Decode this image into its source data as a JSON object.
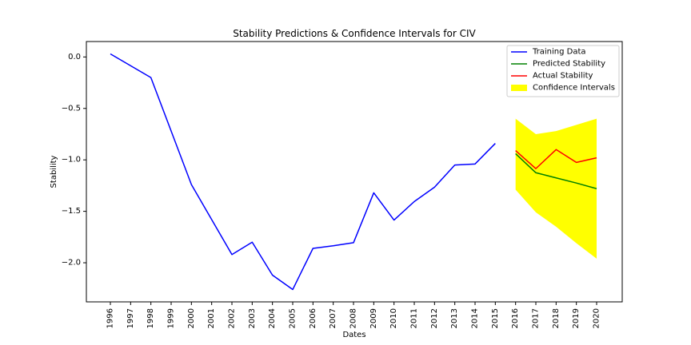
{
  "chart_data": {
    "type": "line",
    "title": "Stability Predictions & Confidence Intervals for CIV",
    "xlabel": "Dates",
    "ylabel": "Stability",
    "x_categories": [
      "1996",
      "1997",
      "1998",
      "1999",
      "2000",
      "2001",
      "2002",
      "2003",
      "2004",
      "2005",
      "2006",
      "2007",
      "2008",
      "2009",
      "2010",
      "2011",
      "2012",
      "2013",
      "2014",
      "2015",
      "2016",
      "2017",
      "2018",
      "2019",
      "2020"
    ],
    "ylim": [
      -2.38,
      0.15
    ],
    "yticks": [
      0.0,
      -0.5,
      -1.0,
      -1.5,
      -2.0
    ],
    "ytick_labels": [
      "0.0",
      "−0.5",
      "−1.0",
      "−1.5",
      "−2.0"
    ],
    "grid": false,
    "legend_position": "top-right",
    "series": [
      {
        "name": "Training Data",
        "color": "#0000ff",
        "x": [
          "1996",
          "1998",
          "2000",
          "2002",
          "2003",
          "2004",
          "2005",
          "2006",
          "2007",
          "2008",
          "2009",
          "2010",
          "2011",
          "2012",
          "2013",
          "2014",
          "2015"
        ],
        "y": [
          0.03,
          -0.2,
          -1.24,
          -1.92,
          -1.8,
          -2.12,
          -2.26,
          -1.86,
          -1.835,
          -1.805,
          -1.32,
          -1.585,
          -1.405,
          -1.265,
          -1.05,
          -1.04,
          -0.84
        ]
      },
      {
        "name": "Predicted Stability",
        "color": "#008000",
        "x": [
          "2016",
          "2017",
          "2018",
          "2019",
          "2020"
        ],
        "y": [
          -0.94,
          -1.125,
          -1.175,
          -1.225,
          -1.28
        ]
      },
      {
        "name": "Actual Stability",
        "color": "#ff0000",
        "x": [
          "2016",
          "2017",
          "2018",
          "2019",
          "2020"
        ],
        "y": [
          -0.91,
          -1.085,
          -0.9,
          -1.025,
          -0.98
        ]
      }
    ],
    "confidence_interval": {
      "name": "Confidence Intervals",
      "color": "#ffff00",
      "x": [
        "2016",
        "2017",
        "2018",
        "2019",
        "2020"
      ],
      "upper": [
        -0.6,
        -0.75,
        -0.72,
        -0.66,
        -0.6
      ],
      "lower": [
        -1.29,
        -1.51,
        -1.65,
        -1.81,
        -1.96
      ]
    }
  }
}
